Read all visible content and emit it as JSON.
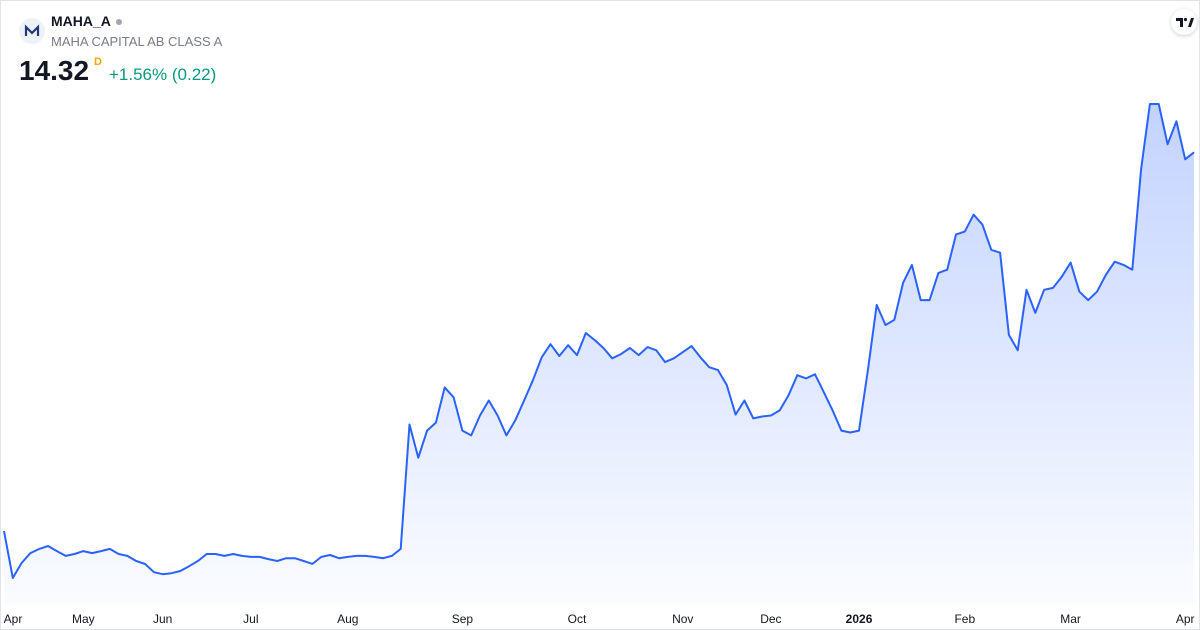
{
  "header": {
    "symbol": "MAHA_A",
    "name": "MAHA CAPITAL AB CLASS A",
    "price": "14.32",
    "interval": "D",
    "change": "+1.56% (0.22)"
  },
  "chart_data": {
    "type": "area",
    "color": "#2962ff",
    "values": [
      2.48,
      1.01,
      1.48,
      1.79,
      1.92,
      2.01,
      1.85,
      1.7,
      1.76,
      1.85,
      1.79,
      1.85,
      1.92,
      1.76,
      1.7,
      1.54,
      1.45,
      1.19,
      1.13,
      1.16,
      1.23,
      1.38,
      1.54,
      1.76,
      1.76,
      1.7,
      1.76,
      1.7,
      1.67,
      1.67,
      1.6,
      1.54,
      1.63,
      1.63,
      1.54,
      1.45,
      1.67,
      1.73,
      1.63,
      1.67,
      1.7,
      1.7,
      1.67,
      1.63,
      1.7,
      1.92,
      5.81,
      4.77,
      5.62,
      5.87,
      6.97,
      6.66,
      5.62,
      5.47,
      6.09,
      6.56,
      6.09,
      5.47,
      5.94,
      6.56,
      7.19,
      7.91,
      8.32,
      7.95,
      8.29,
      7.98,
      8.67,
      8.45,
      8.2,
      7.88,
      8.01,
      8.2,
      7.98,
      8.23,
      8.13,
      7.76,
      7.88,
      8.07,
      8.26,
      7.91,
      7.6,
      7.51,
      7.04,
      6.12,
      6.56,
      6.0,
      6.06,
      6.09,
      6.25,
      6.72,
      7.35,
      7.25,
      7.38,
      6.82,
      6.25,
      5.62,
      5.56,
      5.62,
      7.51,
      9.55,
      8.92,
      9.08,
      10.24,
      10.8,
      9.7,
      9.7,
      10.55,
      10.65,
      11.75,
      11.84,
      12.37,
      12.06,
      11.27,
      11.18,
      8.61,
      8.13,
      10.02,
      9.3,
      10.02,
      10.08,
      10.43,
      10.87,
      9.96,
      9.7,
      9.96,
      10.49,
      10.9,
      10.8,
      10.65,
      13.79,
      15.83,
      15.83,
      14.57,
      15.29,
      14.1,
      14.32
    ],
    "xticks": [
      {
        "value": 0,
        "label": "Apr"
      },
      {
        "value": 9,
        "label": "May"
      },
      {
        "value": 18,
        "label": "Jun"
      },
      {
        "value": 28,
        "label": "Jul"
      },
      {
        "value": 39,
        "label": "Aug"
      },
      {
        "value": 52,
        "label": "Sep"
      },
      {
        "value": 65,
        "label": "Oct"
      },
      {
        "value": 77,
        "label": "Nov"
      },
      {
        "value": 87,
        "label": "Dec"
      },
      {
        "value": 97,
        "label": "2026",
        "bold": true
      },
      {
        "value": 109,
        "label": "Feb"
      },
      {
        "value": 121,
        "label": "Mar"
      },
      {
        "value": 134,
        "label": "Apr"
      }
    ]
  }
}
